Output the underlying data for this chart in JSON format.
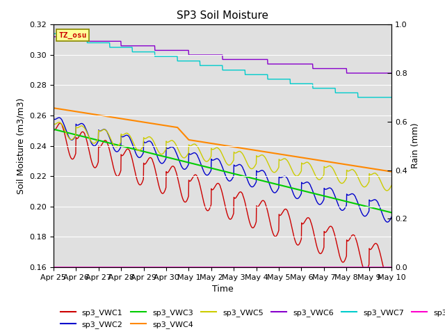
{
  "title": "SP3 Soil Moisture",
  "xlabel": "Time",
  "ylabel_left": "Soil Moisture (m3/m3)",
  "ylabel_right": "Rain (mm)",
  "annotation": "TZ_osu",
  "annotation_color": "#cc0000",
  "annotation_bg": "#ffff99",
  "annotation_border": "#888800",
  "ylim_left": [
    0.16,
    0.32
  ],
  "ylim_right": [
    0.0,
    1.0
  ],
  "background_color": "#e0e0e0",
  "series": {
    "sp3_VWC1": {
      "color": "#cc0000",
      "lw": 1.0
    },
    "sp3_VWC2": {
      "color": "#0000cc",
      "lw": 1.0
    },
    "sp3_VWC3": {
      "color": "#00cc00",
      "lw": 1.5
    },
    "sp3_VWC4": {
      "color": "#ff8800",
      "lw": 1.5
    },
    "sp3_VWC5": {
      "color": "#cccc00",
      "lw": 1.0
    },
    "sp3_VWC6": {
      "color": "#8800cc",
      "lw": 1.0
    },
    "sp3_VWC7": {
      "color": "#00cccc",
      "lw": 1.0
    },
    "sp3_Rain": {
      "color": "#ff00cc",
      "lw": 1.0
    }
  },
  "xtick_labels": [
    "Apr 25",
    "Apr 26",
    "Apr 27",
    "Apr 28",
    "Apr 29",
    "Apr 30",
    "May 1",
    "May 2",
    "May 3",
    "May 4",
    "May 5",
    "May 6",
    "May 7",
    "May 8",
    "May 9",
    "May 10"
  ],
  "yticks_left": [
    0.16,
    0.18,
    0.2,
    0.22,
    0.24,
    0.26,
    0.28,
    0.3,
    0.32
  ],
  "yticks_right": [
    0.0,
    0.2,
    0.4,
    0.6,
    0.8,
    1.0
  ],
  "figsize": [
    6.4,
    4.8
  ],
  "dpi": 100
}
